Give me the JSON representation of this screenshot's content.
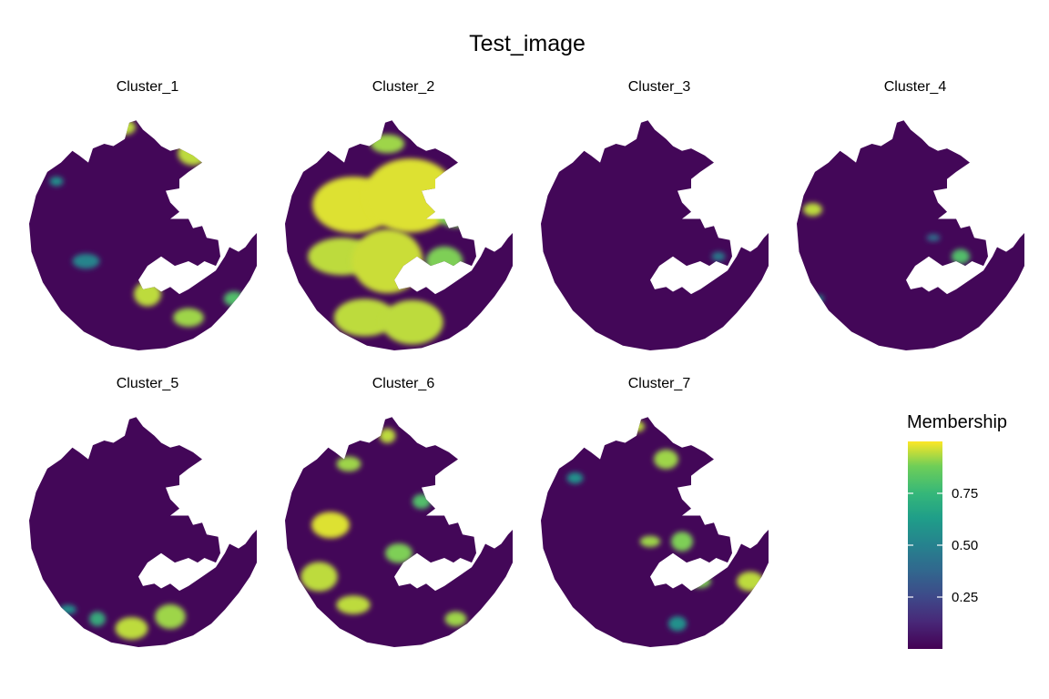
{
  "chart_data": {
    "type": "heatmap",
    "title": "Test_image",
    "facets": [
      "Cluster_1",
      "Cluster_2",
      "Cluster_3",
      "Cluster_4",
      "Cluster_5",
      "Cluster_6",
      "Cluster_7"
    ],
    "legend": {
      "title": "Membership",
      "ticks": [
        "0.25",
        "0.50",
        "0.75"
      ],
      "tick_values": [
        0.25,
        0.5,
        0.75
      ],
      "range": [
        0.0,
        1.0
      ],
      "colormap": "viridis",
      "placement": "right"
    },
    "colors": {
      "low": "#440154",
      "mid_low": "#3b528b",
      "mid": "#21918c",
      "mid_high": "#5ec962",
      "high": "#fde725"
    },
    "grid": false,
    "hotspots": {
      "Cluster_1": [
        [
          0.42,
          0.05,
          0.04,
          0.9
        ],
        [
          0.72,
          0.16,
          0.05,
          0.9
        ],
        [
          0.25,
          0.62,
          0.04,
          0.45
        ],
        [
          0.52,
          0.76,
          0.05,
          0.9
        ],
        [
          0.7,
          0.86,
          0.05,
          0.85
        ],
        [
          0.9,
          0.78,
          0.03,
          0.7
        ],
        [
          0.12,
          0.28,
          0.025,
          0.5
        ]
      ],
      "Cluster_2": [
        [
          0.3,
          0.38,
          0.15,
          0.95
        ],
        [
          0.55,
          0.34,
          0.15,
          0.95
        ],
        [
          0.25,
          0.6,
          0.1,
          0.9
        ],
        [
          0.45,
          0.62,
          0.13,
          0.92
        ],
        [
          0.35,
          0.86,
          0.1,
          0.9
        ],
        [
          0.56,
          0.88,
          0.09,
          0.9
        ],
        [
          0.75,
          0.42,
          0.07,
          0.8
        ],
        [
          0.7,
          0.62,
          0.06,
          0.8
        ],
        [
          0.45,
          0.12,
          0.05,
          0.85
        ]
      ],
      "Cluster_3": [
        [
          0.78,
          0.6,
          0.025,
          0.4
        ]
      ],
      "Cluster_4": [
        [
          0.07,
          0.4,
          0.035,
          0.9
        ],
        [
          0.72,
          0.6,
          0.03,
          0.7
        ],
        [
          0.6,
          0.52,
          0.02,
          0.35
        ],
        [
          0.1,
          0.78,
          0.015,
          0.5
        ]
      ],
      "Cluster_5": [
        [
          0.45,
          0.92,
          0.06,
          0.9
        ],
        [
          0.62,
          0.87,
          0.05,
          0.85
        ],
        [
          0.17,
          0.84,
          0.025,
          0.5
        ],
        [
          0.3,
          0.88,
          0.03,
          0.6
        ]
      ],
      "Cluster_6": [
        [
          0.2,
          0.48,
          0.07,
          0.95
        ],
        [
          0.15,
          0.7,
          0.06,
          0.9
        ],
        [
          0.3,
          0.82,
          0.05,
          0.9
        ],
        [
          0.45,
          0.1,
          0.03,
          0.9
        ],
        [
          0.28,
          0.22,
          0.04,
          0.85
        ],
        [
          0.5,
          0.6,
          0.04,
          0.8
        ],
        [
          0.75,
          0.88,
          0.04,
          0.85
        ],
        [
          0.6,
          0.38,
          0.03,
          0.7
        ]
      ],
      "Cluster_7": [
        [
          0.42,
          0.06,
          0.03,
          0.9
        ],
        [
          0.55,
          0.2,
          0.04,
          0.85
        ],
        [
          0.48,
          0.55,
          0.03,
          0.85
        ],
        [
          0.62,
          0.55,
          0.04,
          0.8
        ],
        [
          0.7,
          0.72,
          0.035,
          0.8
        ],
        [
          0.92,
          0.72,
          0.04,
          0.9
        ],
        [
          0.15,
          0.28,
          0.03,
          0.5
        ],
        [
          0.6,
          0.9,
          0.03,
          0.5
        ]
      ]
    }
  }
}
